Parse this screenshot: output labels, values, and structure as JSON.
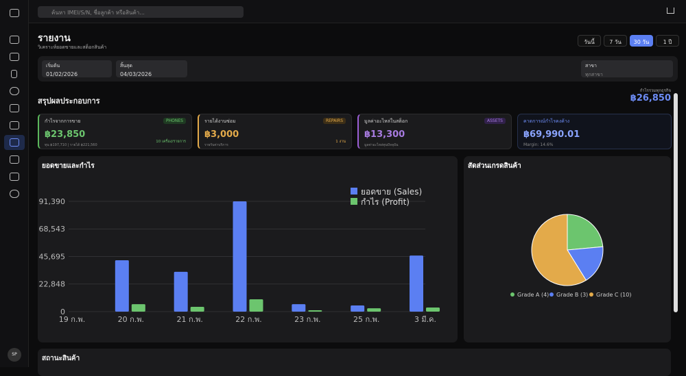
{
  "search_placeholder": "ค้นหา IMEI/S/N, ชื่อลูกค้า หรือสินค้า...",
  "page": {
    "title": "รายงาน",
    "subtitle": "วิเคราะห์ยอดขายและสต็อกสินค้า"
  },
  "range_buttons": [
    "วันนี้",
    "7 วัน",
    "30 วัน",
    "1 ปี"
  ],
  "filters": {
    "start_label": "เริ่มต้น",
    "start_value": "01/02/2026",
    "end_label": "สิ้นสุด",
    "end_value": "04/03/2026",
    "branch_label": "สาขา",
    "branch_value": "ทุกสาขา"
  },
  "summary": {
    "title": "สรุปผลประกอบการ",
    "total_label": "กำไรรวมทุกธุรกิจ",
    "total_value": "฿26,850"
  },
  "cards": [
    {
      "title": "กำไรจากการขาย",
      "tag": "PHONES",
      "value": "฿23,850",
      "note": "ทุน ฿197,710 | รายได้ ฿221,560",
      "badge": "10 เครื่อง/รายการ"
    },
    {
      "title": "รายได้งานซ่อม",
      "tag": "REPAIRS",
      "value": "฿3,000",
      "note": "รายรับค่าบริการ",
      "badge": "1 งาน"
    },
    {
      "title": "มูลค่าอะไหล่ในสต็อก",
      "tag": "ASSETS",
      "value": "฿13,300",
      "note": "มูลค่าอะไหล่ทุนปัจจุบัน"
    },
    {
      "title": "คาดการณ์กำไรคงค้าง",
      "value": "฿69,990.01",
      "note": "Margin: 14.6%"
    }
  ],
  "chart_data": [
    {
      "type": "bar",
      "title": "ยอดขายและกำไร",
      "categories": [
        "19 ก.พ.",
        "20 ก.พ.",
        "21 ก.พ.",
        "22 ก.พ.",
        "23 ก.พ.",
        "25 ก.พ.",
        "3 มี.ค."
      ],
      "series": [
        {
          "name": "ยอดขาย (Sales)",
          "color": "#5b7ff2",
          "values": [
            0,
            42600,
            33000,
            91390,
            6200,
            5100,
            46500
          ]
        },
        {
          "name": "กำไร (Profit)",
          "color": "#6cc56e",
          "values": [
            0,
            6200,
            4000,
            10200,
            1100,
            2800,
            3400
          ]
        }
      ],
      "ylim": [
        0,
        91390
      ],
      "yticks": [
        0,
        {
          "value": 22848,
          "label": "22,848"
        },
        {
          "value": 45695,
          "label": "45,695"
        },
        {
          "value": 68543,
          "label": "68,543"
        },
        {
          "value": 91390,
          "label": "91,390"
        }
      ],
      "grid": true,
      "legend": "top-right"
    },
    {
      "type": "pie",
      "title": "สัดส่วนเกรดสินค้า",
      "categories": [
        "Grade A (4)",
        "Grade B (3)",
        "Grade C (10)"
      ],
      "values": [
        4,
        3,
        10
      ],
      "colors": [
        "#6cc56e",
        "#5b7ff2",
        "#e3aa4a"
      ],
      "legend": "bottom"
    }
  ],
  "stock_title": "สถานะสินค้า",
  "avatar": "SP"
}
